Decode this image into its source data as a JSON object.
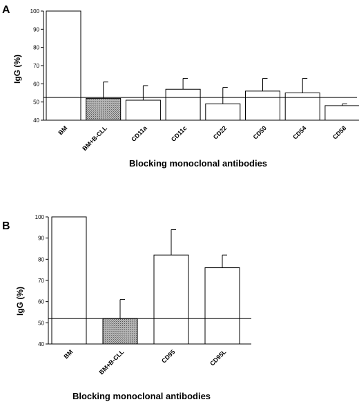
{
  "chart_data": [
    {
      "type": "bar",
      "panel": "A",
      "categories": [
        "BM",
        "BM+B-CLL",
        "CD11a",
        "CD11c",
        "CD22",
        "CD50",
        "CD54",
        "CD58"
      ],
      "values": [
        100,
        52,
        51,
        57,
        49,
        56,
        55,
        48
      ],
      "error_upper": [
        null,
        61,
        59,
        63,
        58,
        63,
        63,
        49
      ],
      "highlight_index": 1,
      "reference_line": 52.5,
      "ylabel": "IgG (%)",
      "xlabel": "Blocking monoclonal antibodies",
      "ylim": [
        40,
        100
      ],
      "yticks": [
        40,
        50,
        60,
        70,
        80,
        90,
        100
      ]
    },
    {
      "type": "bar",
      "panel": "B",
      "categories": [
        "BM",
        "BM+B-CLL",
        "CD95",
        "CD95L"
      ],
      "values": [
        100,
        52,
        82,
        76
      ],
      "error_upper": [
        null,
        61,
        94,
        82
      ],
      "highlight_index": 1,
      "reference_line": 52,
      "ylabel": "IgG (%)",
      "xlabel": "Blocking monoclonal antibodies",
      "ylim": [
        40,
        100
      ],
      "yticks": [
        40,
        50,
        60,
        70,
        80,
        90,
        100
      ]
    }
  ],
  "colors": {
    "bar_fill": "#ffffff",
    "highlight_fill": "#9a9a9a",
    "stroke": "#000000"
  }
}
